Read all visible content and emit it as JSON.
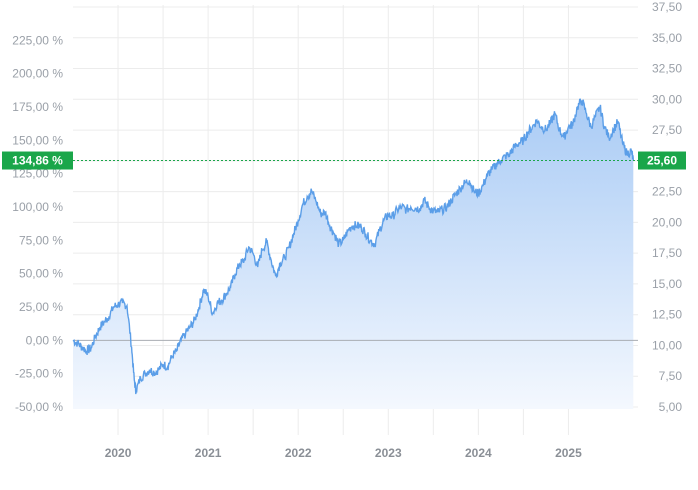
{
  "chart_data": {
    "type": "area",
    "title": "",
    "xlabel": "",
    "ylabel": "",
    "x_ticks": [
      "2020",
      "2021",
      "2022",
      "2023",
      "2024",
      "2025"
    ],
    "y_left_ticks": [
      "-50,00 %",
      "-25,00 %",
      "0,00 %",
      "25,00 %",
      "50,00 %",
      "75,00 %",
      "100,00 %",
      "125,00 %",
      "150,00 %",
      "175,00 %",
      "200,00 %",
      "225,00 %"
    ],
    "y_right_ticks": [
      "5,00",
      "7,50",
      "10,00",
      "12,50",
      "15,00",
      "17,50",
      "20,00",
      "22,50",
      "25,00",
      "27,50",
      "30,00",
      "32,50",
      "35,00",
      "37,50"
    ],
    "left_axis_range": [
      -50,
      250
    ],
    "right_axis_range": [
      5,
      37.5
    ],
    "x_range": [
      2019.5,
      2025.75
    ],
    "grid": true,
    "current_left_label": "134,86 %",
    "current_right_label": "25,60",
    "current_pct": 134.86,
    "colors": {
      "line": "#5b9ee8",
      "fill_top": "#a9cbf5",
      "fill_bottom": "#f4f8fe",
      "badge": "#1aa64a",
      "zero_line": "#a9adb3",
      "grid": "#ececec"
    },
    "series": [
      {
        "x": [
          2019.5,
          2019.55,
          2019.6,
          2019.65,
          2019.7,
          2019.75,
          2019.8,
          2019.85,
          2019.9,
          2019.95,
          2020.0,
          2020.05,
          2020.1,
          2020.15,
          2020.18,
          2020.2,
          2020.25,
          2020.3,
          2020.35,
          2020.4,
          2020.45,
          2020.5,
          2020.55,
          2020.6,
          2020.65,
          2020.7,
          2020.75,
          2020.8,
          2020.85,
          2020.9,
          2020.95,
          2021.0,
          2021.05,
          2021.1,
          2021.15,
          2021.2,
          2021.25,
          2021.3,
          2021.35,
          2021.4,
          2021.45,
          2021.5,
          2021.55,
          2021.6,
          2021.65,
          2021.7,
          2021.75,
          2021.8,
          2021.85,
          2021.9,
          2021.95,
          2022.0,
          2022.05,
          2022.1,
          2022.15,
          2022.2,
          2022.25,
          2022.3,
          2022.35,
          2022.4,
          2022.45,
          2022.5,
          2022.55,
          2022.6,
          2022.65,
          2022.7,
          2022.75,
          2022.8,
          2022.85,
          2022.9,
          2022.95,
          2023.0,
          2023.05,
          2023.1,
          2023.15,
          2023.2,
          2023.25,
          2023.3,
          2023.35,
          2023.4,
          2023.45,
          2023.5,
          2023.55,
          2023.6,
          2023.65,
          2023.7,
          2023.75,
          2023.8,
          2023.85,
          2023.9,
          2023.95,
          2024.0,
          2024.05,
          2024.1,
          2024.15,
          2024.2,
          2024.25,
          2024.3,
          2024.35,
          2024.4,
          2024.45,
          2024.5,
          2024.55,
          2024.6,
          2024.65,
          2024.7,
          2024.75,
          2024.8,
          2024.85,
          2024.9,
          2024.95,
          2025.0,
          2025.05,
          2025.1,
          2025.15,
          2025.2,
          2025.25,
          2025.3,
          2025.35,
          2025.4,
          2025.45,
          2025.5,
          2025.55,
          2025.6,
          2025.65,
          2025.7,
          2025.72
        ],
        "values": [
          0,
          -2,
          -5,
          -8,
          -6,
          3,
          10,
          14,
          18,
          25,
          27,
          28,
          26,
          -5,
          -30,
          -38,
          -28,
          -25,
          -22,
          -24,
          -22,
          -18,
          -20,
          -12,
          -8,
          0,
          5,
          10,
          15,
          25,
          38,
          33,
          20,
          28,
          30,
          35,
          40,
          50,
          57,
          60,
          70,
          65,
          55,
          68,
          74,
          60,
          48,
          58,
          62,
          70,
          80,
          90,
          102,
          108,
          112,
          104,
          95,
          96,
          86,
          80,
          72,
          75,
          82,
          86,
          86,
          85,
          80,
          75,
          72,
          82,
          90,
          94,
          93,
          98,
          100,
          98,
          100,
          99,
          99,
          105,
          100,
          97,
          96,
          98,
          100,
          105,
          110,
          114,
          118,
          120,
          112,
          110,
          116,
          124,
          128,
          132,
          135,
          138,
          140,
          145,
          148,
          150,
          156,
          160,
          165,
          160,
          158,
          163,
          170,
          158,
          152,
          160,
          162,
          175,
          180,
          170,
          160,
          168,
          175,
          160,
          152,
          158,
          164,
          148,
          140,
          142,
          135
        ]
      }
    ]
  }
}
